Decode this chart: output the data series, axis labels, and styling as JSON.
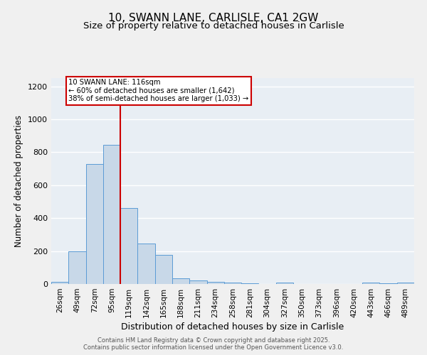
{
  "title_line1": "10, SWANN LANE, CARLISLE, CA1 2GW",
  "title_line2": "Size of property relative to detached houses in Carlisle",
  "xlabel": "Distribution of detached houses by size in Carlisle",
  "ylabel": "Number of detached properties",
  "categories": [
    "26sqm",
    "49sqm",
    "72sqm",
    "95sqm",
    "119sqm",
    "142sqm",
    "165sqm",
    "188sqm",
    "211sqm",
    "234sqm",
    "258sqm",
    "281sqm",
    "304sqm",
    "327sqm",
    "350sqm",
    "373sqm",
    "396sqm",
    "420sqm",
    "443sqm",
    "466sqm",
    "489sqm"
  ],
  "values": [
    15,
    200,
    730,
    845,
    460,
    245,
    178,
    35,
    20,
    12,
    8,
    3,
    0,
    8,
    0,
    0,
    0,
    0,
    8,
    5,
    8
  ],
  "bar_color": "#c8d8e8",
  "bar_edge_color": "#5b9bd5",
  "background_color": "#e8eef4",
  "grid_color": "#ffffff",
  "annotation_text": "10 SWANN LANE: 116sqm\n← 60% of detached houses are smaller (1,642)\n38% of semi-detached houses are larger (1,033) →",
  "red_line_x": 3.5,
  "ylim": [
    0,
    1250
  ],
  "yticks": [
    0,
    200,
    400,
    600,
    800,
    1000,
    1200
  ],
  "footnote": "Contains HM Land Registry data © Crown copyright and database right 2025.\nContains public sector information licensed under the Open Government Licence v3.0.",
  "fig_bg": "#f0f0f0",
  "title_fontsize": 11,
  "subtitle_fontsize": 9.5,
  "axis_label_fontsize": 8.5,
  "tick_fontsize": 7.5,
  "footnote_fontsize": 6.0
}
